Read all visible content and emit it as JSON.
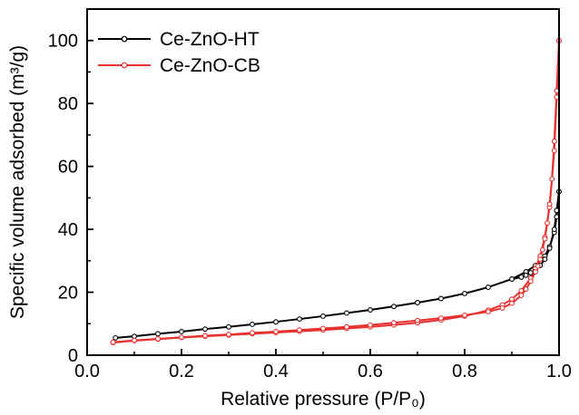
{
  "chart_data": {
    "type": "line",
    "xlabel": "Relative pressure (P/P₀)",
    "ylabel": "Specific volume adsorbed (m³/g)",
    "xlim": [
      0.0,
      1.0
    ],
    "ylim": [
      0,
      110
    ],
    "xticks": [
      "0.0",
      "0.2",
      "0.4",
      "0.6",
      "0.8",
      "1.0"
    ],
    "yticks": [
      "0",
      "20",
      "40",
      "60",
      "80",
      "100"
    ],
    "xtick_values": [
      0.0,
      0.2,
      0.4,
      0.6,
      0.8,
      1.0
    ],
    "ytick_values": [
      0,
      20,
      40,
      60,
      80,
      100
    ],
    "grid": false,
    "legend_position": "top-left",
    "series": [
      {
        "name": "Ce-ZnO-HT",
        "color": "#000000",
        "marker": "open-circle",
        "adsorption": {
          "x": [
            0.06,
            0.1,
            0.15,
            0.2,
            0.25,
            0.3,
            0.35,
            0.4,
            0.45,
            0.5,
            0.55,
            0.6,
            0.65,
            0.7,
            0.75,
            0.8,
            0.85,
            0.9,
            0.93,
            0.95,
            0.97,
            0.98,
            0.99,
            0.995,
            1.0
          ],
          "y": [
            5.5,
            6.0,
            6.8,
            7.5,
            8.3,
            9.0,
            9.8,
            10.6,
            11.5,
            12.4,
            13.4,
            14.4,
            15.5,
            16.7,
            18.0,
            19.6,
            21.6,
            24.2,
            26.5,
            28.5,
            31.5,
            34.5,
            39.0,
            44.0,
            52.0
          ]
        },
        "desorption": {
          "x": [
            1.0,
            0.995,
            0.99,
            0.98,
            0.97,
            0.96,
            0.95,
            0.94,
            0.93,
            0.92,
            0.9
          ],
          "y": [
            52.0,
            46.0,
            40.0,
            34.0,
            30.5,
            28.5,
            27.2,
            26.2,
            25.4,
            24.8,
            24.2
          ]
        }
      },
      {
        "name": "Ce-ZnO-CB",
        "color": "#e8312f",
        "marker": "open-circle",
        "adsorption": {
          "x": [
            0.055,
            0.1,
            0.15,
            0.2,
            0.25,
            0.3,
            0.35,
            0.4,
            0.45,
            0.5,
            0.55,
            0.6,
            0.65,
            0.7,
            0.75,
            0.8,
            0.85,
            0.88,
            0.9,
            0.92,
            0.94,
            0.95,
            0.96,
            0.97,
            0.98,
            0.99,
            0.995,
            1.0
          ],
          "y": [
            4.0,
            4.6,
            5.1,
            5.6,
            6.0,
            6.4,
            6.8,
            7.2,
            7.6,
            8.0,
            8.5,
            9.0,
            9.6,
            10.3,
            11.2,
            12.4,
            14.3,
            16.0,
            17.8,
            20.5,
            24.5,
            27.5,
            31.5,
            37.5,
            47.0,
            65.0,
            82.0,
            100.0
          ]
        },
        "desorption": {
          "x": [
            1.0,
            0.995,
            0.99,
            0.985,
            0.98,
            0.975,
            0.97,
            0.965,
            0.96,
            0.955,
            0.95,
            0.94,
            0.93,
            0.92,
            0.9,
            0.88,
            0.85,
            0.8,
            0.75,
            0.7,
            0.65,
            0.6,
            0.55,
            0.5,
            0.45,
            0.4,
            0.35,
            0.3,
            0.25,
            0.2,
            0.15,
            0.1,
            0.055
          ],
          "y": [
            100.0,
            84.0,
            68.0,
            56.0,
            48.0,
            42.0,
            37.0,
            33.5,
            30.5,
            28.3,
            26.5,
            23.5,
            21.0,
            19.0,
            16.5,
            15.0,
            13.8,
            12.7,
            11.8,
            11.0,
            10.3,
            9.6,
            9.0,
            8.5,
            8.0,
            7.5,
            7.1,
            6.6,
            6.2,
            5.7,
            5.2,
            4.7,
            4.1
          ]
        }
      }
    ]
  }
}
